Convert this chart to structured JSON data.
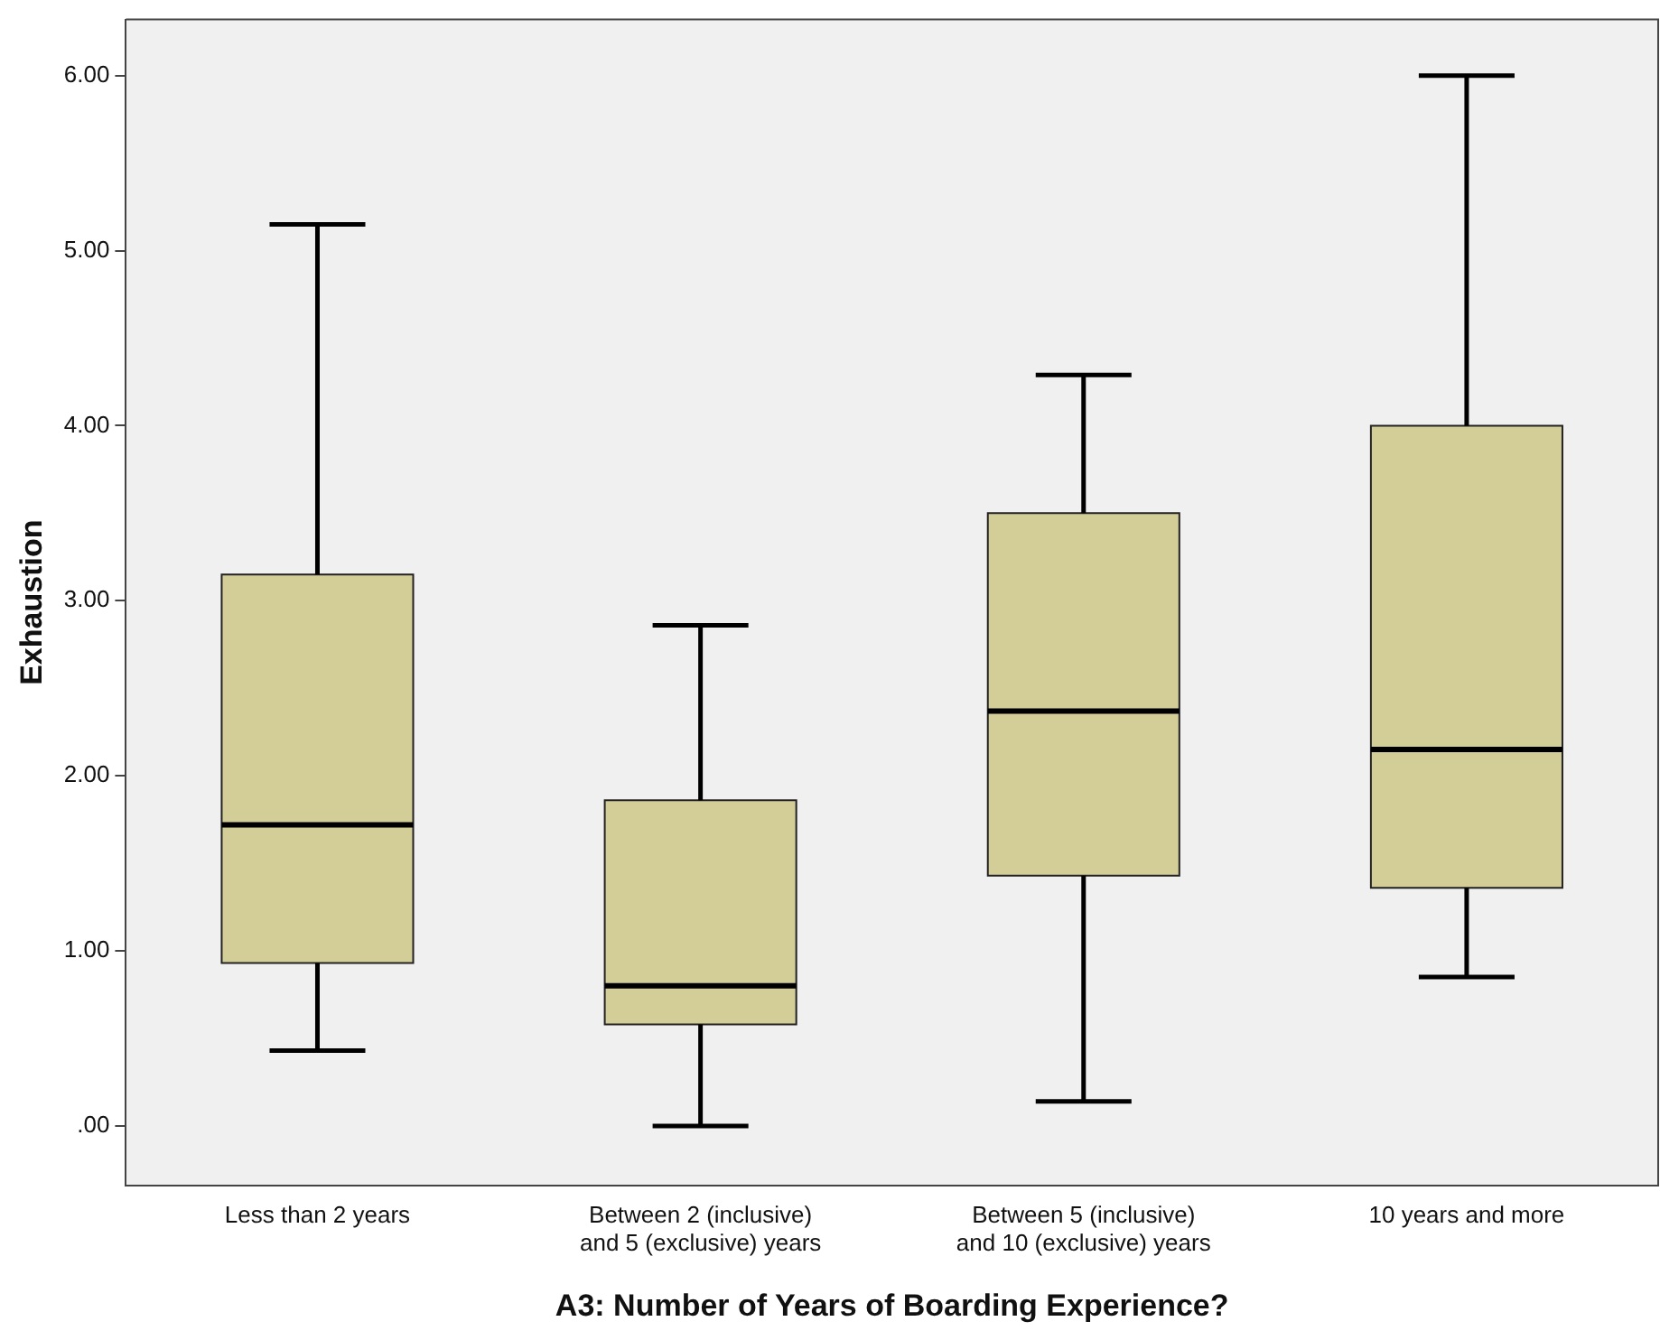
{
  "chart_data": {
    "type": "box",
    "xlabel": "A3: Number of Years of Boarding Experience?",
    "ylabel": "Exhaustion",
    "categories": [
      "Less than 2 years",
      "Between 2 (inclusive)\nand 5 (exclusive) years",
      "Between 5 (inclusive)\nand 10 (exclusive) years",
      "10 years and more"
    ],
    "color": "#d3cd98",
    "boxes": [
      {
        "low": 0.43,
        "q1": 0.93,
        "median": 1.72,
        "q3": 3.15,
        "high": 5.15
      },
      {
        "low": 0.0,
        "q1": 0.58,
        "median": 0.8,
        "q3": 1.86,
        "high": 2.86
      },
      {
        "low": 0.14,
        "q1": 1.43,
        "median": 2.37,
        "q3": 3.5,
        "high": 4.29
      },
      {
        "low": 0.85,
        "q1": 1.36,
        "median": 2.15,
        "q3": 4.0,
        "high": 6.0
      }
    ],
    "ylim": [
      -0.34,
      6.32
    ],
    "yticks": [
      {
        "value": 0,
        "label": ".00"
      },
      {
        "value": 1,
        "label": "1.00"
      },
      {
        "value": 2,
        "label": "2.00"
      },
      {
        "value": 3,
        "label": "3.00"
      },
      {
        "value": 4,
        "label": "4.00"
      },
      {
        "value": 5,
        "label": "5.00"
      },
      {
        "value": 6,
        "label": "6.00"
      }
    ],
    "grid": false,
    "legend": false
  }
}
